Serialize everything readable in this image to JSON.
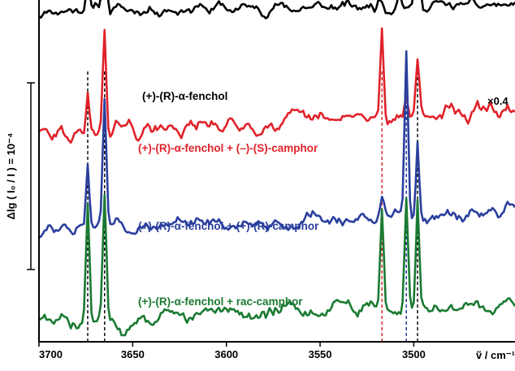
{
  "chart_data": {
    "type": "line",
    "xlabel": "ṽ / cm⁻¹",
    "ylabel": "Δlg ( I₀ / I ) = 10⁻⁴",
    "xlim": [
      3700,
      3446
    ],
    "x_ticks": [
      3700,
      3650,
      3600,
      3550,
      3500
    ],
    "x_tick_labels": [
      "3700",
      "3650",
      "3600",
      "3550",
      "3500"
    ],
    "scale_note": "×0.4",
    "scale_bar": {
      "value": 0.0001
    },
    "dashed_lines": [
      {
        "x": 3674,
        "color": "#000000"
      },
      {
        "x": 3665,
        "color": "#000000"
      },
      {
        "x": 3517,
        "color": "#d42020"
      },
      {
        "x": 3504,
        "color": "#1a2f9a"
      },
      {
        "x": 3498,
        "color": "#000000"
      }
    ],
    "series": [
      {
        "label": "(+)-(R)-α-fenchol",
        "color": "#000000",
        "offset": 1.75,
        "noise_amp": 0.05,
        "seed": 11,
        "drift": 0.03,
        "peaks": [
          [
            3674,
            0.22,
            1.3
          ],
          [
            3665,
            0.62,
            1.3
          ],
          [
            3498,
            1.3,
            1.2
          ],
          [
            3508,
            0.1,
            1.5
          ],
          [
            3518,
            0.06,
            1.5
          ]
        ]
      },
      {
        "label": "(+)-(R)-α-fenchol + (–)-(S)-camphor",
        "color": "#e0222a",
        "offset": 1.05,
        "noise_amp": 0.07,
        "seed": 29,
        "drift": 0.14,
        "peaks": [
          [
            3674,
            0.22,
            1.3
          ],
          [
            3665,
            0.58,
            1.3
          ],
          [
            3517,
            0.52,
            1.3
          ],
          [
            3498,
            0.32,
            1.3
          ],
          [
            3504,
            0.1,
            1.4
          ]
        ]
      },
      {
        "label": "(+)-(R)-α-fenchol + (+)-(R)-camphor",
        "color": "#2a3f9d",
        "offset": 0.52,
        "noise_amp": 0.06,
        "seed": 47,
        "drift": 0.1,
        "peaks": [
          [
            3674,
            0.38,
            1.3
          ],
          [
            3665,
            0.66,
            1.3
          ],
          [
            3504,
            0.88,
            1.3
          ],
          [
            3498,
            0.42,
            1.2
          ],
          [
            3517,
            0.1,
            1.5
          ]
        ]
      },
      {
        "label": "(+)-(R)-α-fenchol + rac-camphor",
        "color": "#1a7a32",
        "offset": 0.0,
        "noise_amp": 0.07,
        "seed": 83,
        "drift": 0.12,
        "peaks": [
          [
            3674,
            0.62,
            1.3
          ],
          [
            3665,
            0.68,
            1.3
          ],
          [
            3517,
            0.58,
            1.3
          ],
          [
            3504,
            0.62,
            1.3
          ],
          [
            3498,
            0.6,
            1.2
          ]
        ]
      }
    ]
  }
}
